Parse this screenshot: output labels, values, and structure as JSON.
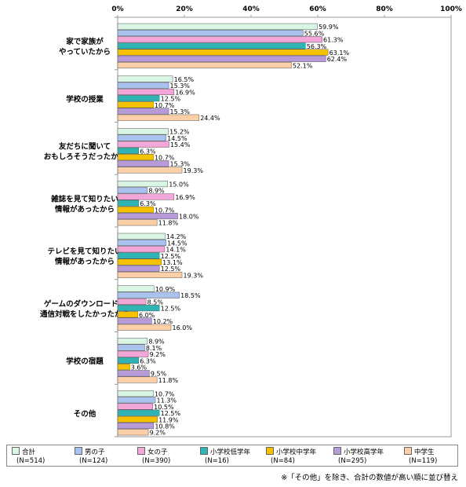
{
  "chart_data": {
    "type": "bar",
    "orientation": "horizontal",
    "title": "",
    "xlim": [
      0,
      100
    ],
    "xticks": [
      "0%",
      "20%",
      "40%",
      "60%",
      "80%",
      "100%"
    ],
    "categories": [
      "家で家族が\nやっていたから",
      "学校の授業",
      "友だちに聞いて\nおもしろそうだったから",
      "雑誌を見て知りたい\n情報があったから",
      "テレビを見て知りたい\n情報があったから",
      "ゲームのダウンロードや\n通信対戦をしたかったから",
      "学校の宿題",
      "その他"
    ],
    "series": [
      {
        "name": "合計",
        "n": "(N=514)",
        "color": "#d9f5e3",
        "values": [
          59.9,
          16.5,
          15.2,
          15.0,
          14.2,
          10.9,
          8.9,
          10.7
        ]
      },
      {
        "name": "男の子",
        "n": "(N=124)",
        "color": "#a9c3ee",
        "values": [
          55.6,
          15.3,
          14.5,
          8.9,
          14.5,
          18.5,
          8.1,
          11.3
        ]
      },
      {
        "name": "女の子",
        "n": "(N=390)",
        "color": "#f3a6d8",
        "values": [
          61.3,
          16.9,
          15.4,
          16.9,
          14.1,
          8.5,
          9.2,
          10.5
        ]
      },
      {
        "name": "小学校低学年",
        "n": "(N=16)",
        "color": "#2fb3b3",
        "values": [
          56.3,
          12.5,
          6.3,
          6.3,
          12.5,
          12.5,
          6.3,
          12.5
        ]
      },
      {
        "name": "小学校中学年",
        "n": "(N=84)",
        "color": "#f6c200",
        "values": [
          63.1,
          10.7,
          10.7,
          10.7,
          13.1,
          6.0,
          3.6,
          11.9
        ]
      },
      {
        "name": "小学校高学年",
        "n": "(N=295)",
        "color": "#b79ad8",
        "values": [
          62.4,
          15.3,
          15.3,
          18.0,
          12.5,
          10.2,
          9.5,
          10.8
        ]
      },
      {
        "name": "中学生",
        "n": "(N=119)",
        "color": "#fbcfa7",
        "values": [
          52.1,
          24.4,
          19.3,
          11.8,
          19.3,
          16.0,
          11.8,
          9.2
        ]
      }
    ]
  },
  "footnote": "※「その他」を除き、合計の数値が高い順に並び替え"
}
